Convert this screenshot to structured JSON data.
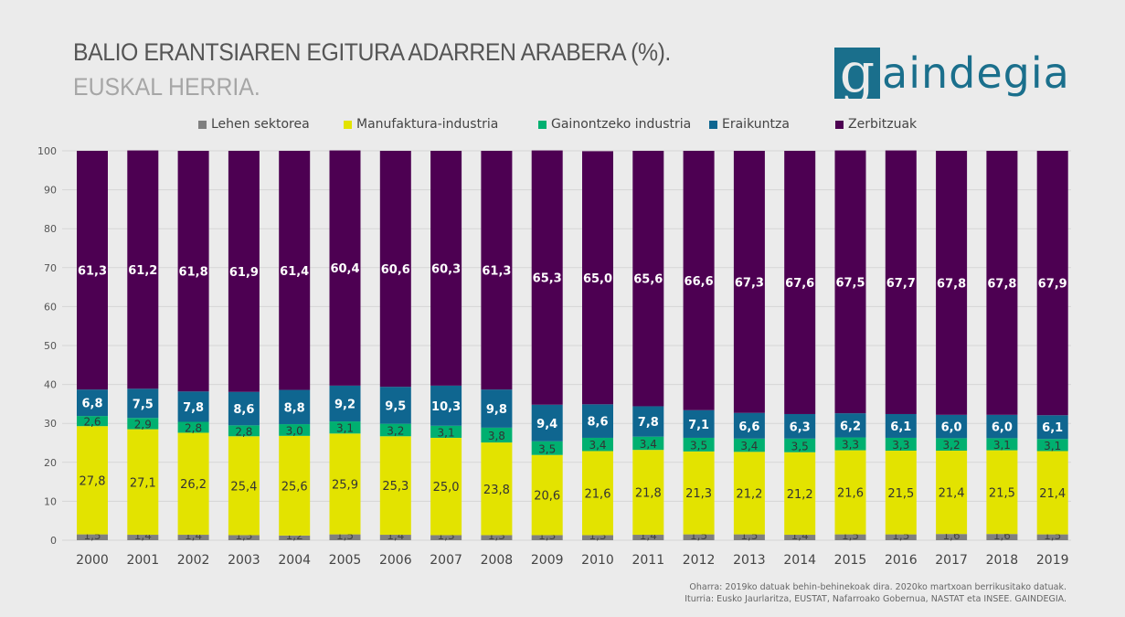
{
  "header": {
    "title": "BALIO ERANTSIAREN EGITURA ADARREN ARABERA (%).",
    "subtitle": "EUSKAL HERRIA."
  },
  "logo": {
    "mark": "g",
    "text": "aindegia",
    "color": "#1a6f8c"
  },
  "footer": {
    "note": "Oharra: 2019ko datuak behin-behinekoak dira. 2020ko martxoan berrikusitako datuak.",
    "source": "Iturria: Eusko Jaurlaritza, EUSTAT, Nafarroako Gobernua, NASTAT eta INSEE. GAINDEGIA."
  },
  "chart_data": {
    "type": "bar",
    "stacked": true,
    "title": "BALIO ERANTSIAREN EGITURA ADARREN ARABERA (%).",
    "subtitle": "EUSKAL HERRIA.",
    "xlabel": "",
    "ylabel": "",
    "ylim": [
      0,
      100
    ],
    "yticks": [
      0,
      10,
      20,
      30,
      40,
      50,
      60,
      70,
      80,
      90,
      100
    ],
    "grid": true,
    "legend_position": "top",
    "categories": [
      "2000",
      "2001",
      "2002",
      "2003",
      "2004",
      "2005",
      "2006",
      "2007",
      "2008",
      "2009",
      "2010",
      "2011",
      "2012",
      "2013",
      "2014",
      "2015",
      "2016",
      "2017",
      "2018",
      "2019"
    ],
    "series": [
      {
        "name": "Lehen sektorea",
        "color": "#7f7f7f",
        "label_color": "#444444",
        "values": [
          1.5,
          1.4,
          1.4,
          1.3,
          1.2,
          1.5,
          1.4,
          1.3,
          1.3,
          1.3,
          1.3,
          1.4,
          1.5,
          1.5,
          1.4,
          1.5,
          1.5,
          1.6,
          1.6,
          1.5
        ]
      },
      {
        "name": "Manufaktura-industria",
        "color": "#e3e300",
        "label_color": "#333333",
        "values": [
          27.8,
          27.1,
          26.2,
          25.4,
          25.6,
          25.9,
          25.3,
          25.0,
          23.8,
          20.6,
          21.6,
          21.8,
          21.3,
          21.2,
          21.2,
          21.6,
          21.5,
          21.4,
          21.5,
          21.4
        ]
      },
      {
        "name": "Gainontzeko industria",
        "color": "#00b070",
        "label_color": "#333333",
        "values": [
          2.6,
          2.9,
          2.8,
          2.8,
          3.0,
          3.1,
          3.2,
          3.1,
          3.8,
          3.5,
          3.4,
          3.4,
          3.5,
          3.4,
          3.5,
          3.3,
          3.3,
          3.2,
          3.1,
          3.1
        ]
      },
      {
        "name": "Eraikuntza",
        "color": "#0f6690",
        "label_color": "#ffffff",
        "values": [
          6.8,
          7.5,
          7.8,
          8.6,
          8.8,
          9.2,
          9.5,
          10.3,
          9.8,
          9.4,
          8.6,
          7.8,
          7.1,
          6.6,
          6.3,
          6.2,
          6.1,
          6.0,
          6.0,
          6.1
        ]
      },
      {
        "name": "Zerbitzuak",
        "color": "#4d0052",
        "label_color": "#ffffff",
        "values": [
          61.3,
          61.2,
          61.8,
          61.9,
          61.4,
          60.4,
          60.6,
          60.3,
          61.3,
          65.3,
          65.0,
          65.6,
          66.6,
          67.3,
          67.6,
          67.5,
          67.7,
          67.8,
          67.8,
          67.9
        ]
      }
    ]
  }
}
